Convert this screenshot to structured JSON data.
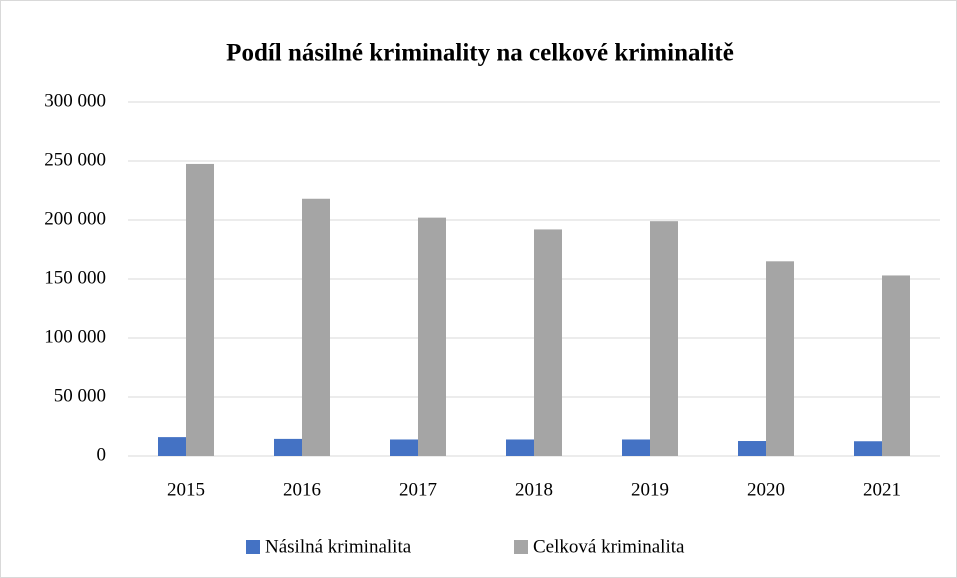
{
  "chart_data": {
    "type": "bar",
    "title": "Podíl násilné kriminality na celkové kriminalitě",
    "categories": [
      "2015",
      "2016",
      "2017",
      "2018",
      "2019",
      "2020",
      "2021"
    ],
    "series": [
      {
        "name": "Násilná kriminalita",
        "color": "#4472c4",
        "values": [
          16000,
          14500,
          14000,
          14000,
          14000,
          12700,
          12500
        ]
      },
      {
        "name": "Celková kriminalita",
        "color": "#a5a5a5",
        "values": [
          247500,
          218000,
          202000,
          192000,
          199000,
          165000,
          153000
        ]
      }
    ],
    "ylim": [
      0,
      300000
    ],
    "yticks": [
      0,
      {
        "value": 50000,
        "label": "50 000"
      },
      {
        "value": 100000,
        "label": "100 000"
      },
      {
        "value": 150000,
        "label": "150 000"
      },
      {
        "value": 200000,
        "label": "200 000"
      },
      {
        "value": 250000,
        "label": "250 000"
      },
      {
        "value": 300000,
        "label": "300 000"
      }
    ],
    "grid": true,
    "legend": "bottom"
  }
}
